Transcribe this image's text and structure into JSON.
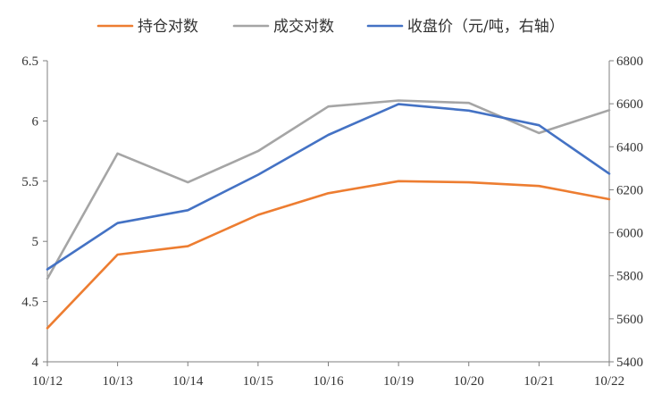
{
  "chart_data": {
    "type": "line",
    "title": "",
    "categories": [
      "10/12",
      "10/13",
      "10/14",
      "10/15",
      "10/16",
      "10/19",
      "10/20",
      "10/21",
      "10/22"
    ],
    "y_left": {
      "range": [
        4,
        6.5
      ],
      "ticks": [
        "4",
        "4.5",
        "5",
        "5.5",
        "6",
        "6.5"
      ],
      "tick_values": [
        4,
        4.5,
        5,
        5.5,
        6,
        6.5
      ]
    },
    "y_right": {
      "range": [
        5400,
        6800
      ],
      "ticks": [
        "5400",
        "5600",
        "5800",
        "6000",
        "6200",
        "6400",
        "6600",
        "6800"
      ],
      "tick_values": [
        5400,
        5600,
        5800,
        6000,
        6200,
        6400,
        6600,
        6800
      ]
    },
    "legend_position": "top",
    "grid": false,
    "series": [
      {
        "name": "持仓对数",
        "axis": "left",
        "color": "#ED7D31",
        "values": [
          4.28,
          4.89,
          4.96,
          5.22,
          5.4,
          5.5,
          5.49,
          5.46,
          5.35
        ]
      },
      {
        "name": "成交对数",
        "axis": "left",
        "color": "#A5A5A5",
        "values": [
          4.69,
          5.73,
          5.49,
          5.75,
          6.12,
          6.17,
          6.15,
          5.9,
          6.09
        ]
      },
      {
        "name": "收盘价（元/吨，右轴）",
        "axis": "right",
        "color": "#4472C4",
        "values": [
          5830,
          6045,
          6105,
          6270,
          6455,
          6598,
          6568,
          6500,
          6275
        ]
      }
    ]
  }
}
